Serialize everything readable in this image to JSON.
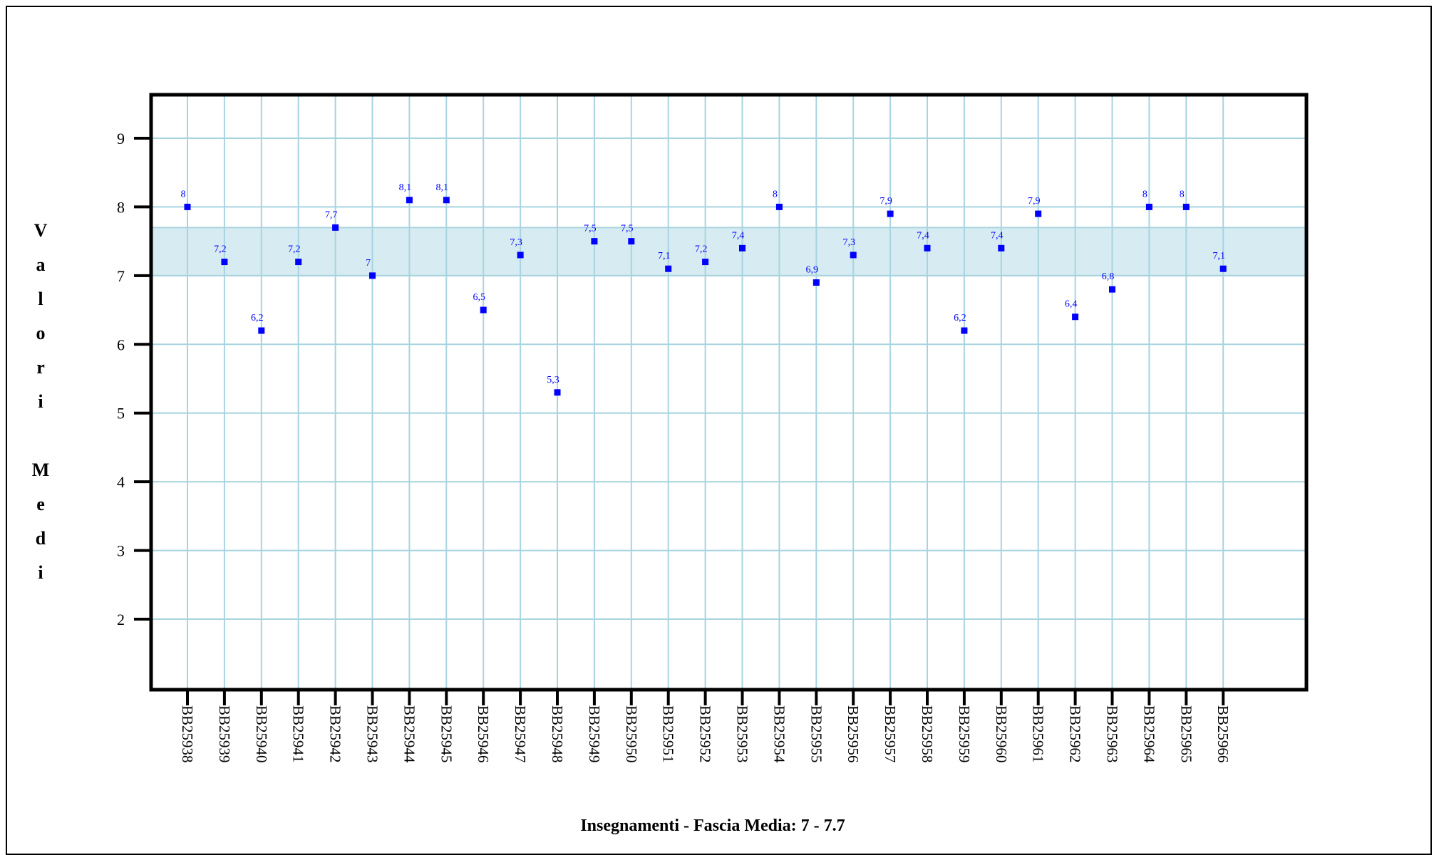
{
  "chart_data": {
    "type": "scatter",
    "xlabel": "Insegnamenti - Fascia Media: 7 - 7.7",
    "ylabel": "Valori Medi",
    "yticks": [
      2,
      3,
      4,
      5,
      6,
      7,
      8,
      9
    ],
    "ylim": [
      1,
      9.6
    ],
    "band": [
      7,
      7.7
    ],
    "grid": true,
    "colors": {
      "point": "#0000ff",
      "grid": "#a8d4e0",
      "band": "#d6ebf2",
      "axis": "#000000"
    },
    "categories": [
      "BB25938",
      "BB25939",
      "BB25940",
      "BB25941",
      "BB25942",
      "BB25943",
      "BB25944",
      "BB25945",
      "BB25946",
      "BB25947",
      "BB25948",
      "BB25949",
      "BB25950",
      "BB25951",
      "BB25952",
      "BB25953",
      "BB25954",
      "BB25955",
      "BB25956",
      "BB25957",
      "BB25958",
      "BB25959",
      "BB25960",
      "BB25961",
      "BB25962",
      "BB25963",
      "BB25964",
      "BB25965",
      "BB25966"
    ],
    "values": [
      8,
      7.2,
      6.2,
      7.2,
      7.7,
      7,
      8.1,
      8.1,
      6.5,
      7.3,
      5.3,
      7.5,
      7.5,
      7.1,
      7.2,
      7.4,
      8,
      6.9,
      7.3,
      7.9,
      7.4,
      6.2,
      7.4,
      7.9,
      6.4,
      6.8,
      8,
      8,
      7.1
    ],
    "value_labels": [
      "8",
      "7,2",
      "6,2",
      "7,2",
      "7,7",
      "7",
      "8,1",
      "8,1",
      "6,5",
      "7,3",
      "5,3",
      "7,5",
      "7,5",
      "7,1",
      "7,2",
      "7,4",
      "8",
      "6,9",
      "7,3",
      "7,9",
      "7,4",
      "6,2",
      "7,4",
      "7,9",
      "6,4",
      "6,8",
      "8",
      "8",
      "7,1"
    ]
  }
}
